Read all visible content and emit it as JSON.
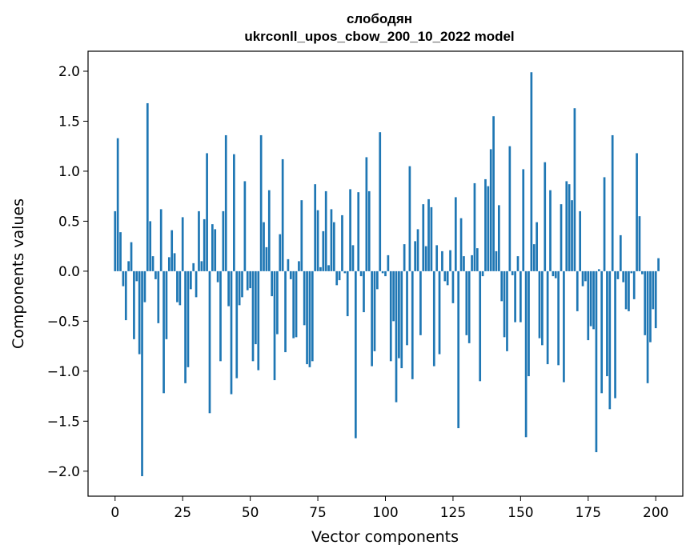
{
  "chart_data": {
    "type": "bar",
    "title": "слободян",
    "subtitle": "ukrconll_upos_cbow_200_10_2022 model",
    "xlabel": "Vector components",
    "ylabel": "Components values",
    "xlim": [
      -10,
      210
    ],
    "ylim": [
      -2.25,
      2.2
    ],
    "xticks": [
      0,
      25,
      50,
      75,
      100,
      125,
      150,
      175,
      200
    ],
    "yticks": [
      -2.0,
      -1.5,
      -1.0,
      -0.5,
      0.0,
      0.5,
      1.0,
      1.5,
      2.0
    ],
    "ytick_labels": [
      "−2.0",
      "−1.5",
      "−1.0",
      "−0.5",
      "0.0",
      "0.5",
      "1.0",
      "1.5",
      "2.0"
    ],
    "grid": false,
    "bar_color": "#1f77b4",
    "values": [
      0.6,
      1.33,
      0.39,
      -0.15,
      -0.49,
      0.1,
      0.29,
      -0.68,
      -0.1,
      -0.83,
      -2.05,
      -0.31,
      1.68,
      0.5,
      0.15,
      -0.08,
      -0.52,
      0.62,
      -1.22,
      -0.68,
      0.14,
      0.41,
      0.18,
      -0.31,
      -0.34,
      0.54,
      -1.12,
      -0.96,
      -0.18,
      0.08,
      -0.26,
      0.6,
      0.1,
      0.52,
      1.18,
      -1.42,
      0.47,
      0.42,
      -0.11,
      -0.9,
      0.6,
      1.36,
      -0.35,
      -1.23,
      1.17,
      -1.07,
      -0.34,
      -0.26,
      0.9,
      -0.19,
      -0.17,
      -0.9,
      -0.73,
      -0.99,
      1.36,
      0.49,
      0.24,
      0.81,
      -0.25,
      -1.09,
      -0.63,
      0.37,
      1.12,
      -0.81,
      0.12,
      -0.08,
      -0.67,
      -0.66,
      0.1,
      0.71,
      -0.54,
      -0.93,
      -0.96,
      -0.9,
      0.87,
      0.61,
      0.04,
      0.4,
      0.8,
      0.06,
      0.62,
      0.49,
      -0.14,
      -0.09,
      0.56,
      -0.02,
      -0.45,
      0.82,
      0.26,
      -1.67,
      0.79,
      -0.05,
      -0.41,
      1.14,
      0.8,
      -0.95,
      -0.8,
      -0.18,
      1.39,
      -0.02,
      -0.05,
      0.16,
      -0.9,
      -0.5,
      -1.31,
      -0.87,
      -0.97,
      0.27,
      -0.74,
      1.05,
      -1.08,
      0.3,
      0.42,
      -0.64,
      0.67,
      0.25,
      0.72,
      0.64,
      -0.95,
      0.26,
      -0.83,
      0.2,
      -0.1,
      -0.14,
      0.21,
      -0.32,
      0.74,
      -1.57,
      0.53,
      0.15,
      -0.64,
      -0.72,
      0.16,
      0.88,
      0.23,
      -1.1,
      -0.05,
      0.92,
      0.85,
      1.22,
      1.55,
      0.2,
      0.66,
      -0.3,
      -0.66,
      -0.8,
      1.25,
      -0.04,
      -0.51,
      0.15,
      -0.51,
      1.02,
      -1.66,
      -1.05,
      1.99,
      0.27,
      0.49,
      -0.67,
      -0.74,
      1.09,
      -0.93,
      0.81,
      -0.05,
      -0.07,
      -0.94,
      0.67,
      -1.11,
      0.9,
      0.87,
      0.71,
      1.63,
      -0.4,
      0.6,
      -0.15,
      -0.1,
      -0.69,
      -0.55,
      -0.58,
      -1.81,
      0.02,
      -1.22,
      0.94,
      -1.05,
      -1.38,
      1.36,
      -1.27,
      -0.08,
      0.36,
      -0.11,
      -0.38,
      -0.4,
      -0.02,
      -0.28,
      1.18,
      0.55,
      -0.03,
      -0.64,
      -1.12,
      -0.71,
      -0.38,
      -0.57,
      0.13
    ]
  }
}
